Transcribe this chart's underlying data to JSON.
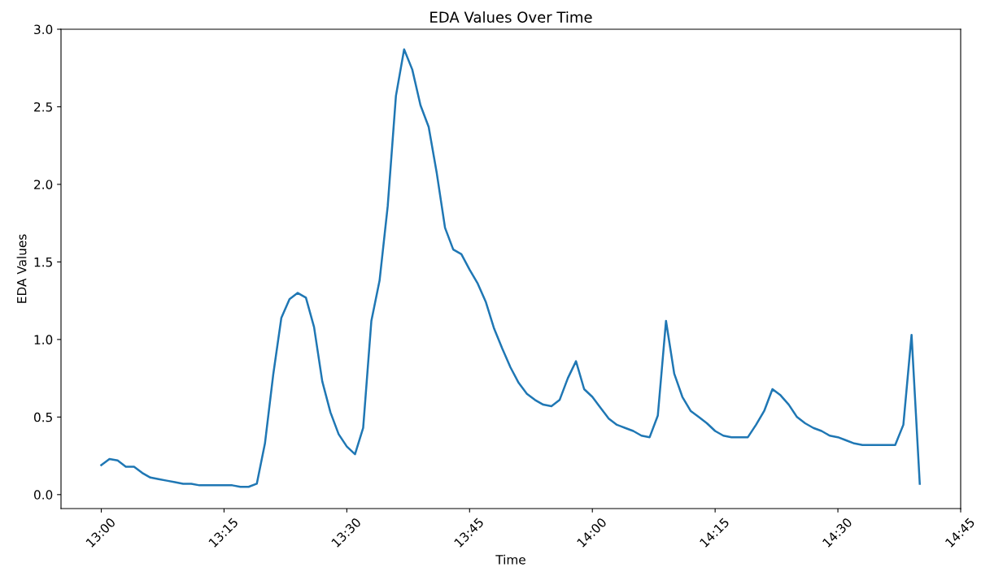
{
  "chart_data": {
    "type": "line",
    "title": "EDA Values Over Time",
    "xlabel": "Time",
    "ylabel": "EDA Values",
    "x": [
      13.0,
      13.0167,
      13.0333,
      13.05,
      13.0667,
      13.0833,
      13.1,
      13.1167,
      13.1333,
      13.15,
      13.1667,
      13.1833,
      13.2,
      13.2167,
      13.2333,
      13.25,
      13.2667,
      13.2833,
      13.3,
      13.3167,
      13.3333,
      13.35,
      13.3667,
      13.3833,
      13.4,
      13.4167,
      13.4333,
      13.45,
      13.4667,
      13.4833,
      13.5,
      13.5167,
      13.5333,
      13.55,
      13.5667,
      13.5833,
      13.6,
      13.6167,
      13.6333,
      13.65,
      13.6667,
      13.6833,
      13.7,
      13.7167,
      13.7333,
      13.75,
      13.7667,
      13.7833,
      13.8,
      13.8167,
      13.8333,
      13.85,
      13.8667,
      13.8833,
      13.9,
      13.9167,
      13.9333,
      13.95,
      13.9667,
      13.9833,
      14.0,
      14.0167,
      14.0333,
      14.05,
      14.0667,
      14.0833,
      14.1,
      14.1167,
      14.1333,
      14.15,
      14.1667,
      14.1833,
      14.2,
      14.2167,
      14.2333,
      14.25,
      14.2667,
      14.2833,
      14.3,
      14.3167,
      14.3333,
      14.35,
      14.3667,
      14.3833,
      14.4,
      14.4167,
      14.4333,
      14.45,
      14.4667,
      14.4833,
      14.5,
      14.5167,
      14.5333,
      14.55,
      14.5667,
      14.5833,
      14.6,
      14.6167,
      14.6333,
      14.65,
      14.6667
    ],
    "series": [
      {
        "color": "#1f77b4",
        "values": [
          0.19,
          0.23,
          0.22,
          0.18,
          0.18,
          0.14,
          0.11,
          0.1,
          0.09,
          0.08,
          0.07,
          0.07,
          0.06,
          0.06,
          0.06,
          0.06,
          0.06,
          0.05,
          0.05,
          0.07,
          0.33,
          0.77,
          1.14,
          1.26,
          1.3,
          1.27,
          1.08,
          0.73,
          0.53,
          0.39,
          0.31,
          0.26,
          0.43,
          1.12,
          1.38,
          1.86,
          2.57,
          2.87,
          2.74,
          2.51,
          2.37,
          2.07,
          1.72,
          1.58,
          1.55,
          1.45,
          1.36,
          1.24,
          1.07,
          0.94,
          0.82,
          0.72,
          0.65,
          0.61,
          0.58,
          0.57,
          0.61,
          0.75,
          0.86,
          0.68,
          0.63,
          0.56,
          0.49,
          0.45,
          0.43,
          0.41,
          0.38,
          0.37,
          0.51,
          1.12,
          0.78,
          0.63,
          0.54,
          0.5,
          0.46,
          0.41,
          0.38,
          0.37,
          0.37,
          0.37,
          0.45,
          0.54,
          0.68,
          0.64,
          0.58,
          0.5,
          0.46,
          0.43,
          0.41,
          0.38,
          0.37,
          0.35,
          0.33,
          0.32,
          0.32,
          0.32,
          0.32,
          0.32,
          0.45,
          1.03,
          0.07
        ]
      }
    ],
    "xlim": [
      12.918,
      14.75
    ],
    "xticks": [
      {
        "value": 13.0,
        "label": "13:00"
      },
      {
        "value": 13.25,
        "label": "13:15"
      },
      {
        "value": 13.5,
        "label": "13:30"
      },
      {
        "value": 13.75,
        "label": "13:45"
      },
      {
        "value": 14.0,
        "label": "14:00"
      },
      {
        "value": 14.25,
        "label": "14:15"
      },
      {
        "value": 14.5,
        "label": "14:30"
      },
      {
        "value": 14.75,
        "label": "14:45"
      }
    ],
    "ylim": [
      -0.09,
      3.0
    ],
    "yticks": [
      {
        "value": 0,
        "label": "0.0"
      },
      {
        "value": 0.5,
        "label": "0.5"
      },
      {
        "value": 1.0,
        "label": "1.0"
      },
      {
        "value": 1.5,
        "label": "1.5"
      },
      {
        "value": 2.0,
        "label": "2.0"
      },
      {
        "value": 2.5,
        "label": "2.5"
      },
      {
        "value": 3.0,
        "label": "3.0"
      }
    ],
    "grid": false,
    "legend": false,
    "marker": "none",
    "line_style": "solid"
  }
}
